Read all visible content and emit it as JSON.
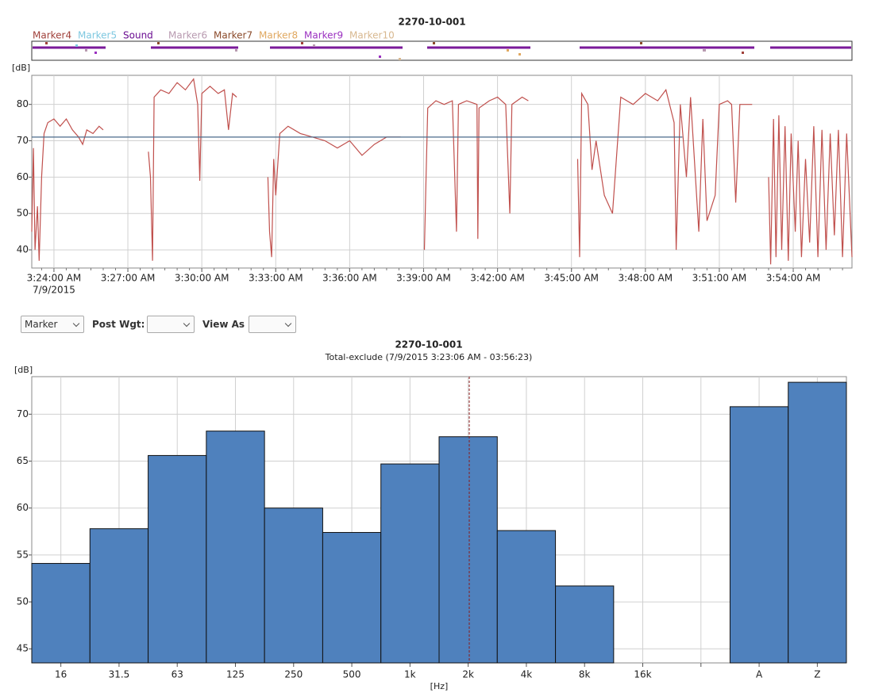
{
  "chart_data": [
    {
      "type": "line",
      "title": "2270-10-001",
      "ylabel": "[dB]",
      "xaxis_date": "7/9/2015",
      "legend": [
        {
          "name": "Marker4",
          "color": "#a0403a"
        },
        {
          "name": "Marker5",
          "color": "#7ec8e0"
        },
        {
          "name": "Sound",
          "color": "#6a0d91"
        },
        {
          "name": "Marker6",
          "color": "#b89ab0"
        },
        {
          "name": "Marker7",
          "color": "#8b4a2a"
        },
        {
          "name": "Marker8",
          "color": "#e0a860"
        },
        {
          "name": "Marker9",
          "color": "#9a30c0"
        },
        {
          "name": "Marker10",
          "color": "#d8b890"
        }
      ],
      "xlim": [
        "3:23:06 AM",
        "3:56:23 AM"
      ],
      "xticks": [
        "3:24:00 AM",
        "3:27:00 AM",
        "3:30:00 AM",
        "3:33:00 AM",
        "3:36:00 AM",
        "3:39:00 AM",
        "3:42:00 AM",
        "3:45:00 AM",
        "3:48:00 AM",
        "3:51:00 AM",
        "3:54:00 AM"
      ],
      "ylim": [
        35,
        88
      ],
      "yticks": [
        40,
        50,
        60,
        70,
        80
      ],
      "grid": true,
      "series": [
        {
          "color": "#c0504d",
          "x": [
            "3:23:06 AM",
            "3:23:10 AM",
            "3:23:14 AM",
            "3:23:20 AM",
            "3:23:24 AM",
            "3:23:30 AM",
            "3:23:36 AM",
            "3:23:45 AM",
            "3:24:00 AM",
            "3:24:15 AM",
            "3:24:30 AM",
            "3:24:45 AM",
            "3:25:00 AM",
            "3:25:10 AM",
            "3:25:20 AM",
            "3:25:35 AM",
            "3:25:50 AM",
            "3:26:00 AM",
            "3:26:30 AM",
            "3:27:50 AM",
            "3:27:55 AM",
            "3:28:00 AM",
            "3:28:04 AM",
            "3:28:20 AM",
            "3:28:40 AM",
            "3:29:00 AM",
            "3:29:20 AM",
            "3:29:40 AM",
            "3:29:50 AM",
            "3:29:55 AM",
            "3:30:00 AM",
            "3:30:20 AM",
            "3:30:40 AM",
            "3:30:55 AM",
            "3:31:05 AM",
            "3:31:15 AM",
            "3:31:25 AM",
            "3:32:00 AM",
            "3:32:41 AM",
            "3:32:45 AM",
            "3:32:50 AM",
            "3:32:55 AM",
            "3:33:00 AM",
            "3:33:10 AM",
            "3:33:30 AM",
            "3:34:00 AM",
            "3:34:30 AM",
            "3:35:00 AM",
            "3:35:30 AM",
            "3:36:00 AM",
            "3:36:30 AM",
            "3:37:00 AM",
            "3:37:30 AM",
            "3:38:04 AM",
            "3:38:30 AM",
            "3:39:02 AM",
            "3:39:06 AM",
            "3:39:10 AM",
            "3:39:30 AM",
            "3:39:50 AM",
            "3:40:10 AM",
            "3:40:20 AM",
            "3:40:25 AM",
            "3:40:45 AM",
            "3:41:10 AM",
            "3:41:12 AM",
            "3:41:15 AM",
            "3:41:40 AM",
            "3:42:00 AM",
            "3:42:20 AM",
            "3:42:30 AM",
            "3:42:35 AM",
            "3:43:00 AM",
            "3:43:15 AM",
            "3:44:00 AM",
            "3:45:15 AM",
            "3:45:20 AM",
            "3:45:25 AM",
            "3:45:40 AM",
            "3:45:50 AM",
            "3:46:00 AM",
            "3:46:20 AM",
            "3:46:40 AM",
            "3:47:00 AM",
            "3:47:30 AM",
            "3:48:00 AM",
            "3:48:30 AM",
            "3:48:50 AM",
            "3:49:10 AM",
            "3:49:15 AM",
            "3:49:25 AM",
            "3:49:40 AM",
            "3:49:50 AM",
            "3:50:10 AM",
            "3:50:20 AM",
            "3:50:30 AM",
            "3:50:50 AM",
            "3:51:00 AM",
            "3:51:20 AM",
            "3:51:30 AM",
            "3:51:40 AM",
            "3:51:50 AM",
            "3:52:20 AM",
            "3:52:50 AM",
            "3:53:00 AM",
            "3:53:05 AM",
            "3:53:12 AM",
            "3:53:18 AM",
            "3:53:25 AM",
            "3:53:32 AM",
            "3:53:40 AM",
            "3:53:48 AM",
            "3:53:55 AM",
            "3:54:05 AM",
            "3:54:12 AM",
            "3:54:20 AM",
            "3:54:30 AM",
            "3:54:40 AM",
            "3:54:50 AM",
            "3:55:00 AM",
            "3:55:10 AM",
            "3:55:20 AM",
            "3:55:30 AM",
            "3:55:40 AM",
            "3:55:50 AM",
            "3:56:00 AM",
            "3:56:10 AM",
            "3:56:23 AM"
          ],
          "values": [
            45,
            68,
            40,
            52,
            37,
            60,
            72,
            75,
            76,
            74,
            76,
            73,
            71,
            69,
            73,
            72,
            74,
            73,
            null,
            67,
            60,
            37,
            82,
            84,
            83,
            86,
            84,
            87,
            80,
            59,
            83,
            85,
            83,
            84,
            73,
            83,
            82,
            null,
            60,
            45,
            38,
            65,
            55,
            72,
            74,
            72,
            71,
            70,
            68,
            70,
            66,
            69,
            71,
            71,
            null,
            40,
            60,
            79,
            81,
            80,
            81,
            45,
            80,
            81,
            80,
            43,
            79,
            81,
            82,
            80,
            50,
            80,
            82,
            81,
            null,
            65,
            38,
            83,
            80,
            62,
            70,
            55,
            50,
            82,
            80,
            83,
            81,
            84,
            75,
            40,
            80,
            60,
            82,
            45,
            76,
            48,
            55,
            80,
            81,
            80,
            53,
            80,
            80,
            null,
            60,
            36,
            76,
            38,
            77,
            40,
            74,
            37,
            72,
            45,
            70,
            38,
            65,
            42,
            74,
            38,
            73,
            40,
            72,
            44,
            73,
            38,
            72,
            38
          ]
        },
        {
          "color": "#4a6a8a",
          "x": [
            "3:23:06 AM",
            "3:49:30 AM"
          ],
          "values": [
            71,
            71
          ]
        }
      ]
    },
    {
      "type": "bar",
      "title": "2270-10-001",
      "subtitle": "Total-exclude (7/9/2015 3:23:06 AM - 03:56:23)",
      "ylabel": "[dB]",
      "xlabel": "[Hz]",
      "categories": [
        "16",
        "31.5",
        "63",
        "125",
        "250",
        "500",
        "1k",
        "2k",
        "4k",
        "8k",
        "16k",
        null,
        "A",
        "Z"
      ],
      "values": [
        54.1,
        57.8,
        65.6,
        68.2,
        60.0,
        57.4,
        64.7,
        67.6,
        57.6,
        51.7,
        null,
        null,
        70.8,
        73.4
      ],
      "color": "#4f81bd",
      "ylim": [
        43.5,
        74
      ],
      "yticks": [
        45,
        50,
        55,
        60,
        65,
        70
      ],
      "grid": true
    }
  ],
  "controls": {
    "view_select": "Marker",
    "post_wgt_label": "Post Wgt:",
    "view_as_label": "View As"
  }
}
